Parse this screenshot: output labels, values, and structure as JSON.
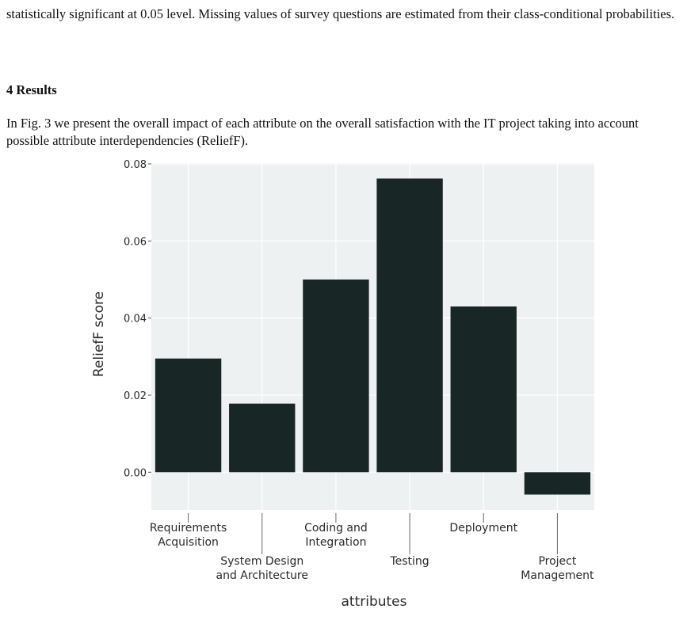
{
  "page": {
    "paragraph_top": "statistically significant at 0.05 level. Missing values of survey questions are estimated from their class-conditional probabilities.",
    "section_heading": "4 Results",
    "paragraph_results": "In Fig. 3 we present the overall impact of each attribute on the overall satisfaction with the IT project taking into account possible attribute interdependencies (ReliefF)."
  },
  "chart_data": {
    "type": "bar",
    "categories": [
      [
        "Requirements",
        "Acquisition"
      ],
      [
        "System Design",
        "and Architecture"
      ],
      [
        "Coding and",
        "Integration"
      ],
      [
        "Testing"
      ],
      [
        "Deployment"
      ],
      [
        "Project",
        "Management"
      ]
    ],
    "values": [
      0.0295,
      0.0178,
      0.05,
      0.0762,
      0.043,
      -0.0058
    ],
    "xlabel": "attributes",
    "ylabel": "ReliefF score",
    "ylim": [
      -0.0098,
      0.0802
    ],
    "yticks": [
      "0.08",
      "0.06",
      "0.04",
      "0.02",
      "0.00"
    ],
    "bar_color": "#182726",
    "plot_background": "#eef1f2",
    "grid": true
  }
}
